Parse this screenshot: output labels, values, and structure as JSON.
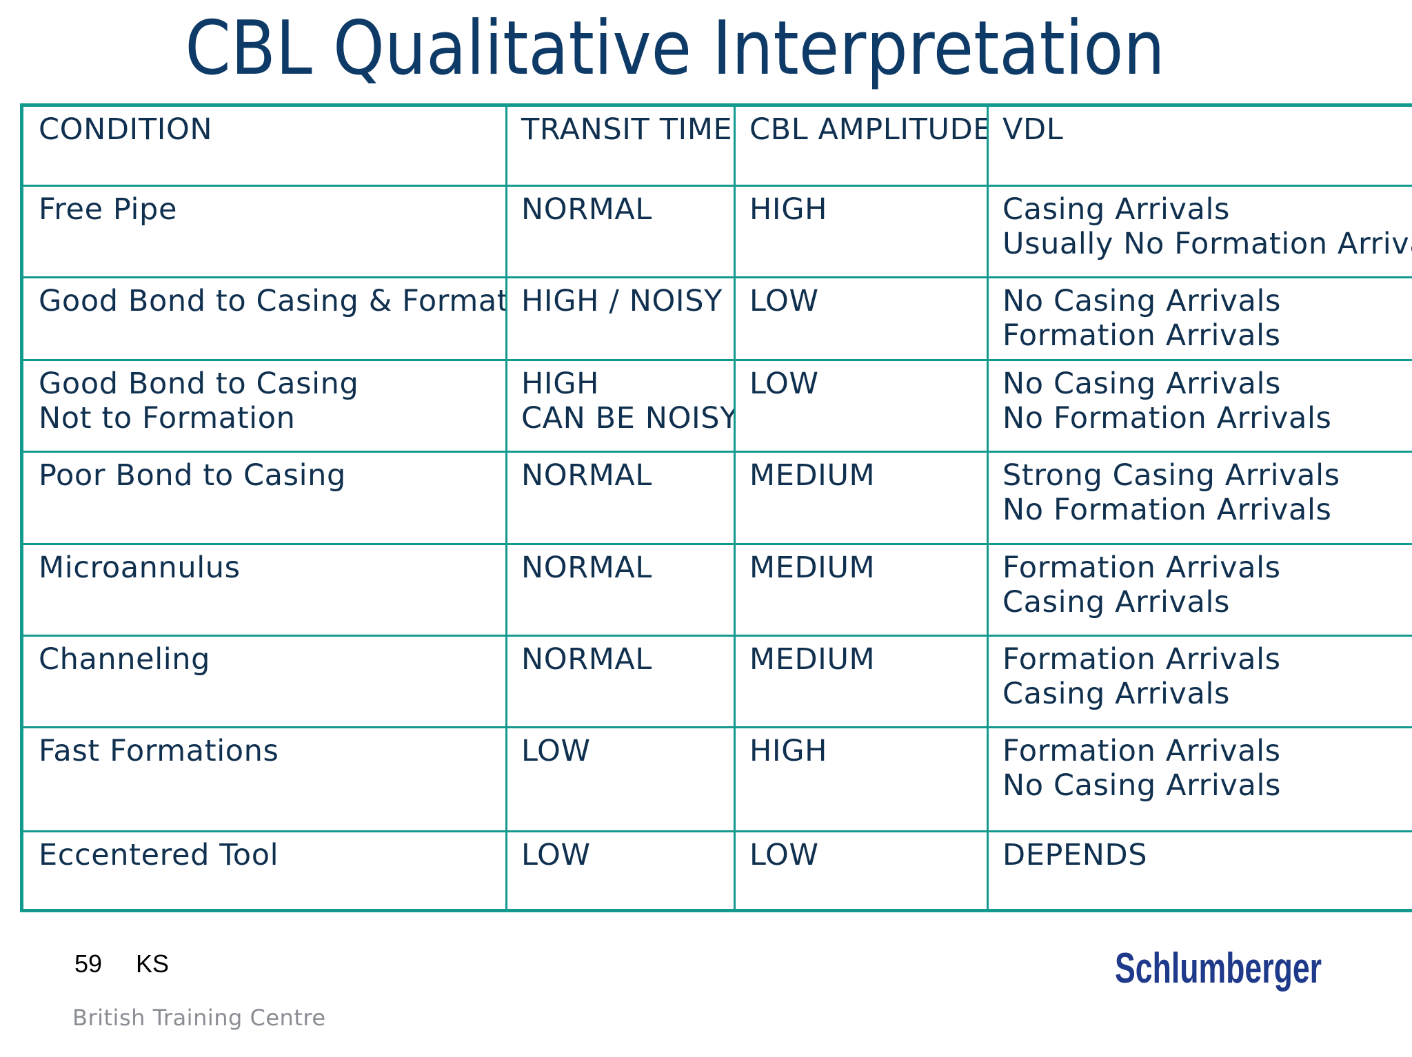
{
  "title": "CBL Qualitative Interpretation",
  "table": {
    "headers": [
      "CONDITION",
      "TRANSIT TIME",
      "CBL AMPLITUDE",
      "VDL"
    ],
    "rows": [
      [
        [
          "Free Pipe"
        ],
        [
          "NORMAL"
        ],
        [
          "HIGH"
        ],
        [
          "Casing Arrivals",
          "Usually No Formation Arrivals"
        ]
      ],
      [
        [
          "Good Bond to Casing & Formation"
        ],
        [
          "HIGH / NOISY"
        ],
        [
          "LOW"
        ],
        [
          "No Casing Arrivals",
          "Formation Arrivals"
        ]
      ],
      [
        [
          "Good Bond to Casing",
          "Not to Formation"
        ],
        [
          "HIGH",
          "CAN BE NOISY"
        ],
        [
          "LOW"
        ],
        [
          "No Casing Arrivals",
          "No Formation Arrivals"
        ]
      ],
      [
        [
          "Poor Bond to Casing"
        ],
        [
          "NORMAL"
        ],
        [
          "MEDIUM"
        ],
        [
          "Strong Casing Arrivals",
          "No Formation Arrivals"
        ]
      ],
      [
        [
          "Microannulus"
        ],
        [
          "NORMAL"
        ],
        [
          "MEDIUM"
        ],
        [
          "Formation Arrivals",
          "Casing Arrivals"
        ]
      ],
      [
        [
          "Channeling"
        ],
        [
          "NORMAL"
        ],
        [
          "MEDIUM"
        ],
        [
          "Formation Arrivals",
          "Casing Arrivals"
        ]
      ],
      [
        [
          "Fast Formations"
        ],
        [
          "LOW"
        ],
        [
          "HIGH"
        ],
        [
          "Formation Arrivals",
          "No Casing Arrivals"
        ]
      ],
      [
        [
          "Eccentered Tool"
        ],
        [
          "LOW"
        ],
        [
          "LOW"
        ],
        [
          "DEPENDS"
        ]
      ]
    ]
  },
  "footer": {
    "page_number": "59",
    "initials": "KS",
    "centre": "British Training Centre",
    "logo_text": "Schlumberger"
  },
  "colors": {
    "title": "#0d3a66",
    "table_border": "#14998f",
    "cell_text": "#10304f",
    "logo": "#1f3a8a",
    "footer_grey": "#8a8d93"
  }
}
